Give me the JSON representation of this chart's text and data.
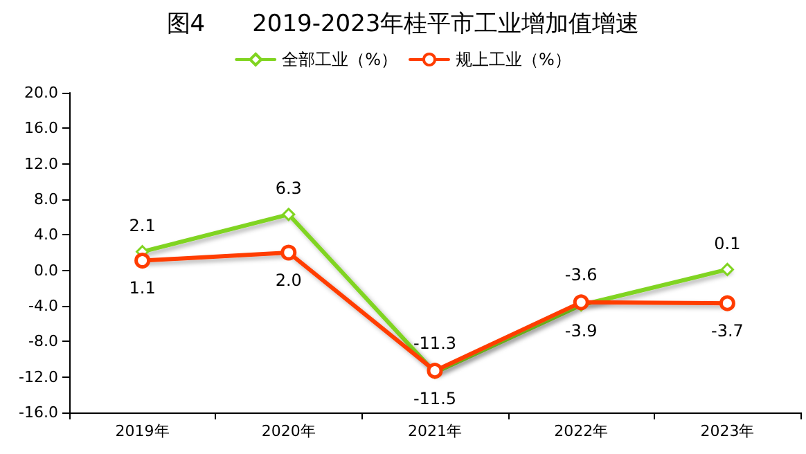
{
  "chart_data": {
    "type": "line",
    "title": "图4　　2019-2023年桂平市工业增加值增速",
    "categories": [
      "2019年",
      "2020年",
      "2021年",
      "2022年",
      "2023年"
    ],
    "series": [
      {
        "name": "全部工业（%）",
        "color": "#80d420",
        "marker": "diamond",
        "values": [
          2.1,
          6.3,
          -11.5,
          -3.9,
          0.1
        ],
        "value_labels": [
          "2.1",
          "6.3",
          "-11.5",
          "-3.9",
          "0.1"
        ]
      },
      {
        "name": "规上工业（%）",
        "color": "#ff3c00",
        "marker": "circle",
        "values": [
          1.1,
          2.0,
          -11.3,
          -3.6,
          -3.7
        ],
        "value_labels": [
          "1.1",
          "2.0",
          "-11.3",
          "-3.6",
          "-3.7"
        ]
      }
    ],
    "ylim": [
      -16,
      20
    ],
    "yticks": [
      {
        "value": -16,
        "label": "-16.0"
      },
      {
        "value": -12,
        "label": "-12.0"
      },
      {
        "value": -8,
        "label": "-8.0"
      },
      {
        "value": -4,
        "label": "-4.0"
      },
      {
        "value": 0,
        "label": "0.0"
      },
      {
        "value": 4,
        "label": "4.0"
      },
      {
        "value": 8,
        "label": "8.0"
      },
      {
        "value": 12,
        "label": "12.0"
      },
      {
        "value": 16,
        "label": "16.0"
      },
      {
        "value": 20,
        "label": "20.0"
      }
    ],
    "grid": false,
    "legend": "top",
    "line_style": "solid"
  }
}
